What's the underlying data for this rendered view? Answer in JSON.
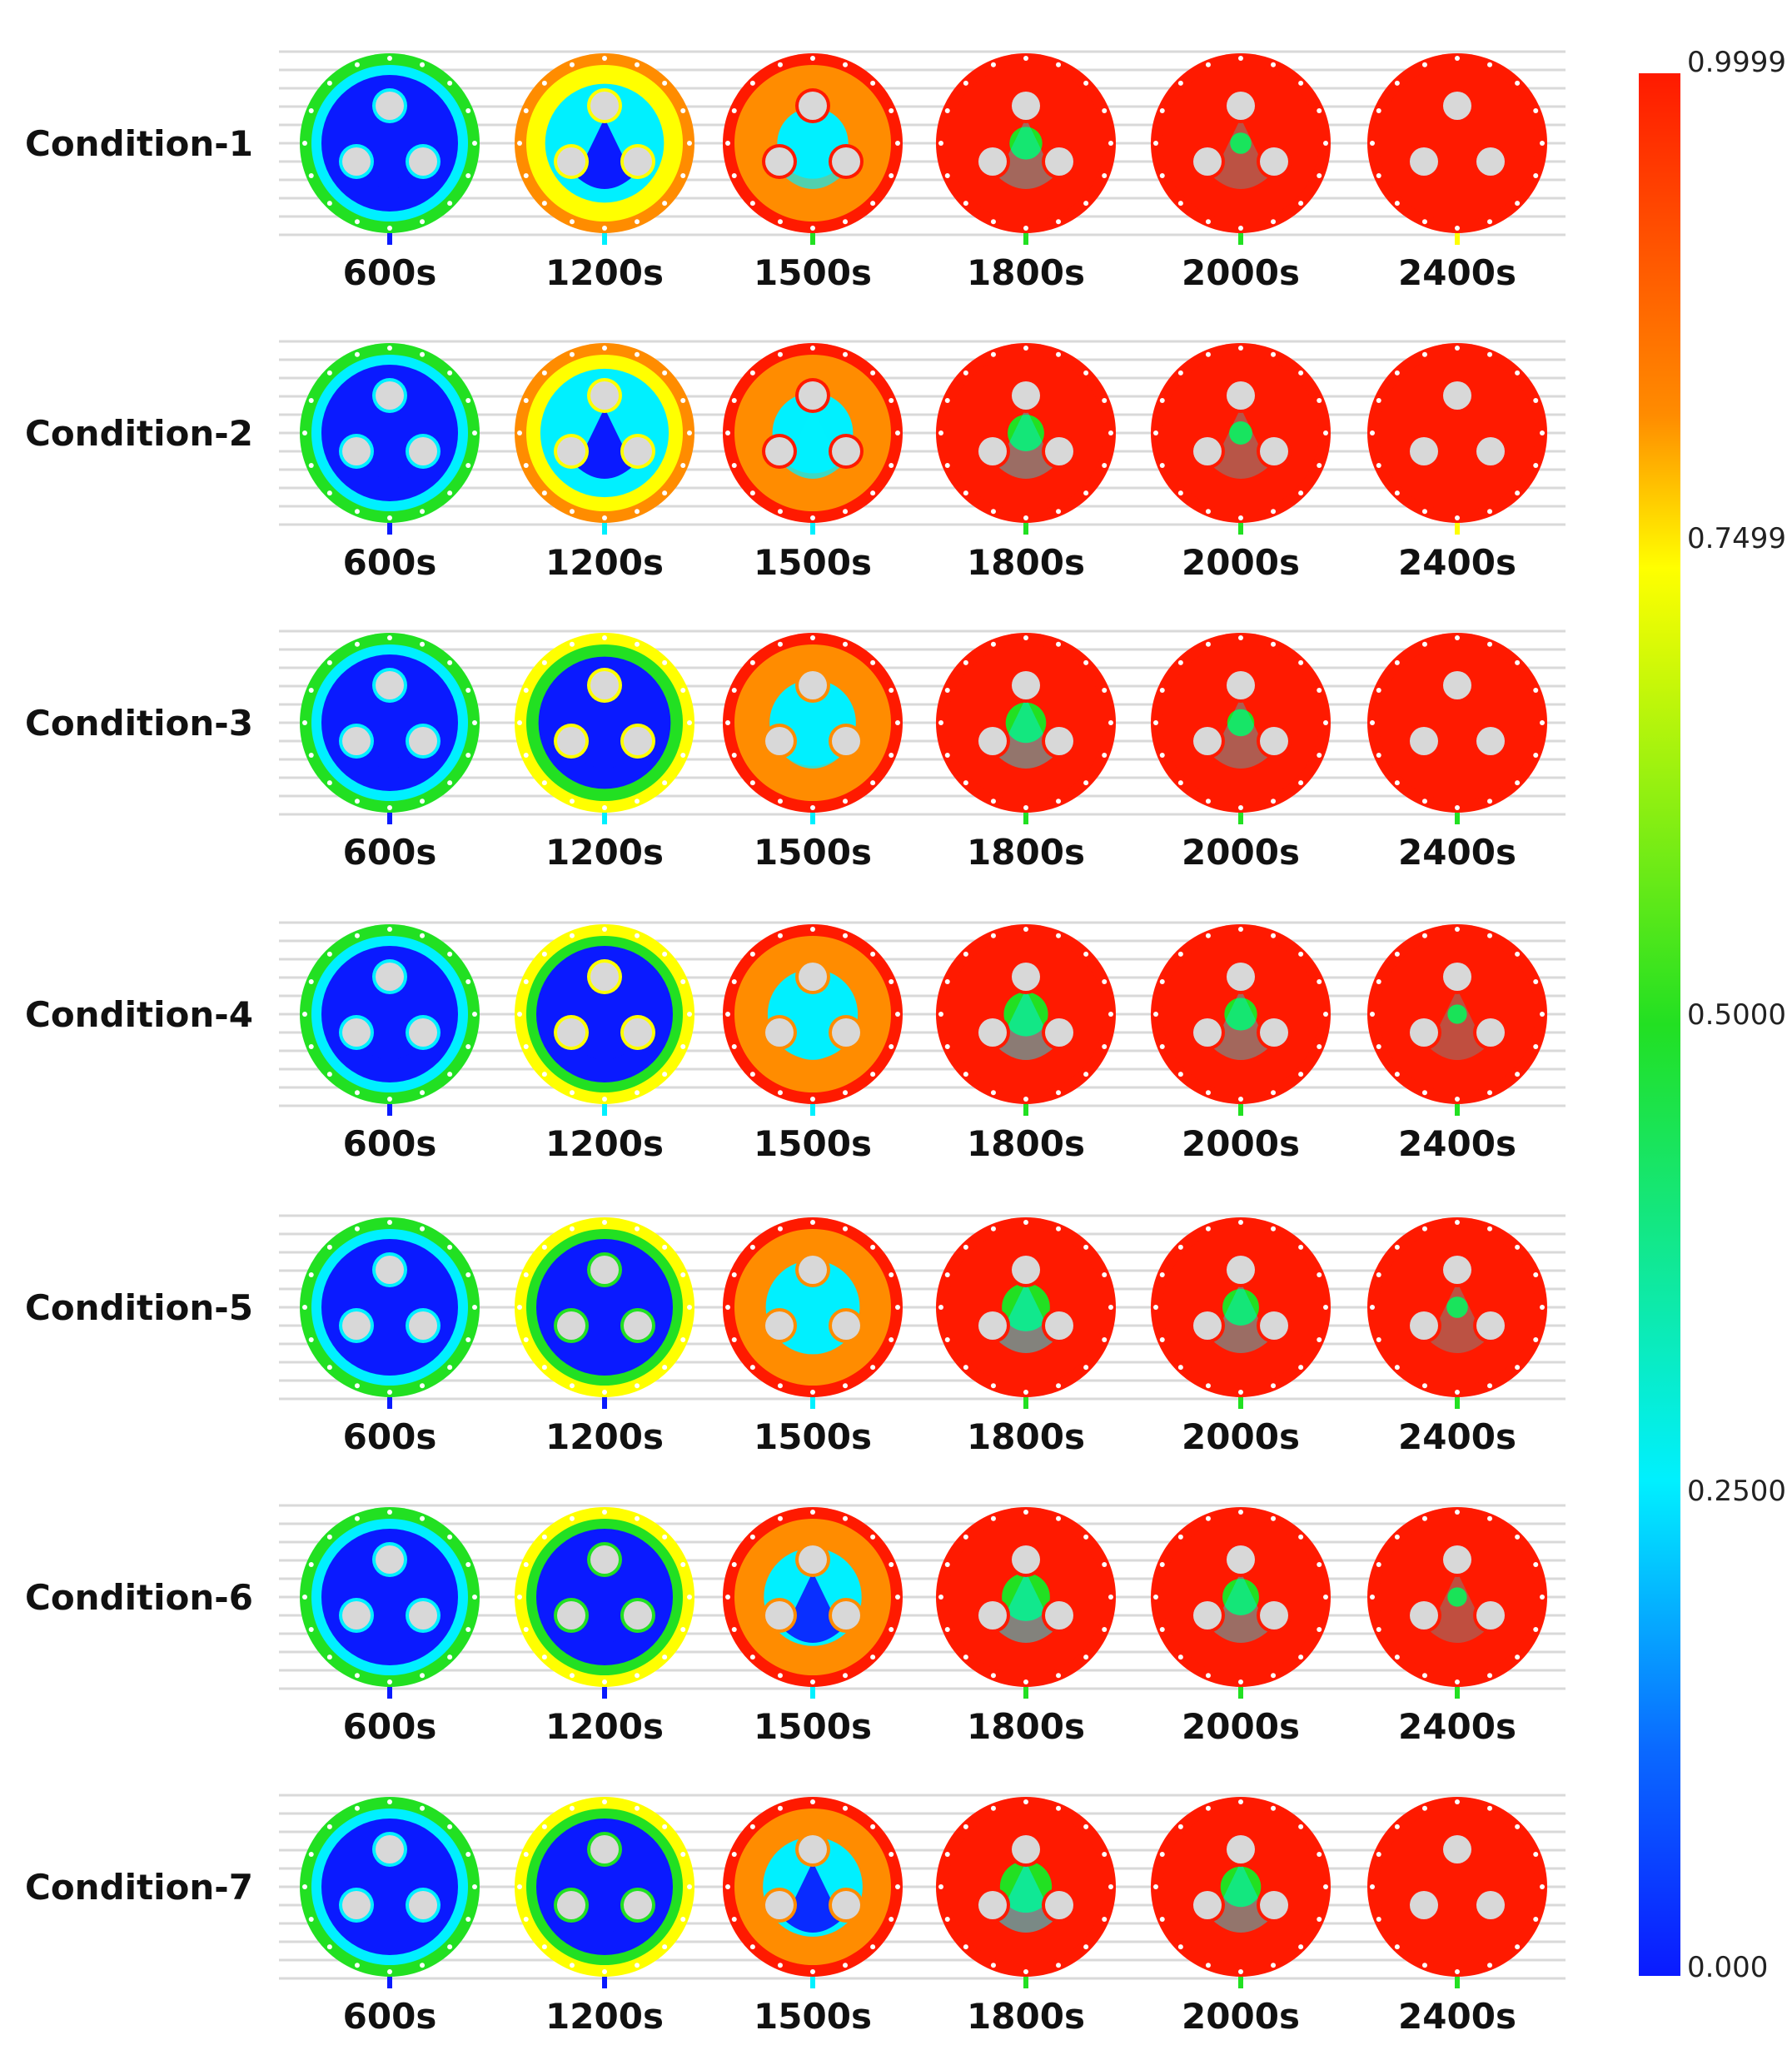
{
  "colors": {
    "blue": "#0a1aff",
    "cyan": "#00f0ff",
    "green": "#22e022",
    "yellow": "#ffff00",
    "orange": "#ff8c00",
    "red": "#ff1a00",
    "tube_fill": "#d8d8d8",
    "grid_line": "#d9d9d9"
  },
  "conditions": [
    {
      "label": "Condition-1",
      "times": [
        "600s",
        "1200s",
        "1500s",
        "1800s",
        "2000s",
        "2400s"
      ],
      "levels": [
        0.1,
        0.45,
        0.7,
        0.9,
        0.96,
        1.0
      ]
    },
    {
      "label": "Condition-2",
      "times": [
        "600s",
        "1200s",
        "1500s",
        "1800s",
        "2000s",
        "2400s"
      ],
      "levels": [
        0.1,
        0.4,
        0.65,
        0.88,
        0.95,
        1.0
      ]
    },
    {
      "label": "Condition-3",
      "times": [
        "600s",
        "1200s",
        "1500s",
        "1800s",
        "2000s",
        "2400s"
      ],
      "levels": [
        0.08,
        0.38,
        0.62,
        0.86,
        0.93,
        0.99
      ]
    },
    {
      "label": "Condition-4",
      "times": [
        "600s",
        "1200s",
        "1500s",
        "1800s",
        "2000s",
        "2400s"
      ],
      "levels": [
        0.08,
        0.35,
        0.6,
        0.84,
        0.9,
        0.97
      ]
    },
    {
      "label": "Condition-5",
      "times": [
        "600s",
        "1200s",
        "1500s",
        "1800s",
        "2000s",
        "2400s"
      ],
      "levels": [
        0.06,
        0.32,
        0.58,
        0.82,
        0.88,
        0.96
      ]
    },
    {
      "label": "Condition-6",
      "times": [
        "600s",
        "1200s",
        "1500s",
        "1800s",
        "2000s",
        "2400s"
      ],
      "levels": [
        0.06,
        0.3,
        0.56,
        0.82,
        0.88,
        0.97
      ]
    },
    {
      "label": "Condition-7",
      "times": [
        "600s",
        "1200s",
        "1500s",
        "1800s",
        "2000s",
        "2400s"
      ],
      "levels": [
        0.06,
        0.3,
        0.55,
        0.8,
        0.86,
        0.99
      ]
    }
  ],
  "colorbar": {
    "labels": [
      "0.9999",
      "0.7499",
      "0.5000",
      "0.2500",
      "0.000"
    ]
  }
}
